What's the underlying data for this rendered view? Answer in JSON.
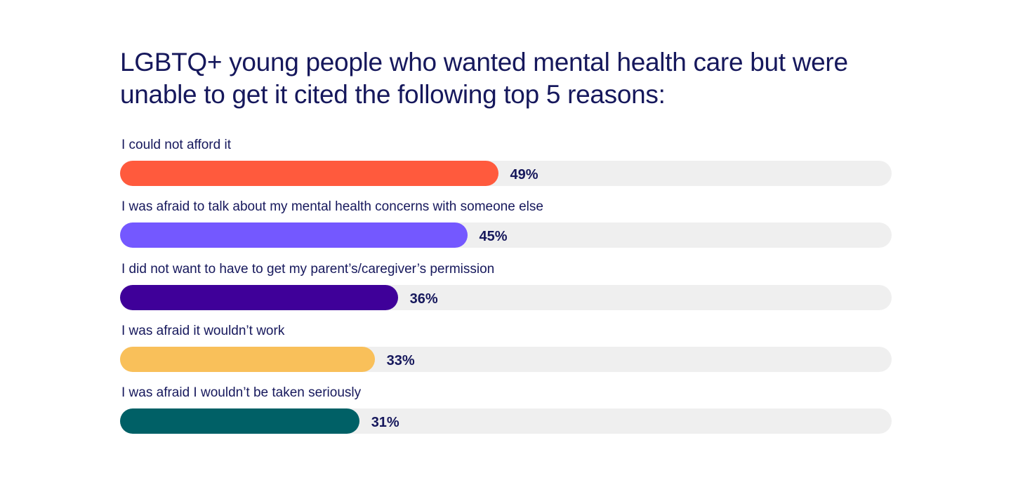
{
  "chart_data": {
    "type": "bar",
    "orientation": "horizontal",
    "title": "LGBTQ+ young people who wanted mental health care but were unable to get it cited the following top 5 reasons:",
    "categories": [
      "I could not afford it",
      "I was afraid to talk about my mental health concerns with someone else",
      "I did not want to have to get my parent’s/caregiver’s permission",
      "I was afraid it wouldn’t work",
      "I was afraid I wouldn’t be taken seriously"
    ],
    "values": [
      49,
      45,
      36,
      33,
      31
    ],
    "value_labels": [
      "49%",
      "45%",
      "36%",
      "33%",
      "31%"
    ],
    "colors": [
      "#ff5a3d",
      "#7458ff",
      "#3f0099",
      "#f9c05a",
      "#006066"
    ],
    "track_color": "#efefef",
    "xlim": [
      0,
      100
    ],
    "grid": false,
    "legend": "none"
  }
}
